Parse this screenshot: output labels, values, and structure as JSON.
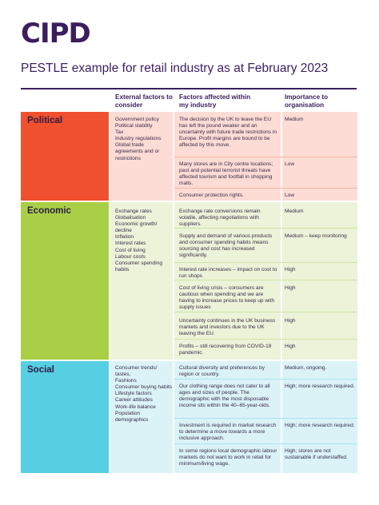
{
  "logo": "CIPD",
  "title": "PESTLE example for retail industry as at February 2023",
  "headers": {
    "col1": "External factors to consider",
    "col2": "Factors affected within my industry",
    "col3": "Importance to organisation"
  },
  "sections": [
    {
      "label": "Political",
      "external": "Government policy\nPolitical stability\nTax\nIndustry regulations\nGlobal trade agreements and or restrictions",
      "rows": [
        {
          "factor": "The decision by the UK to leave the EU has left the pound weaker and an uncertainty with future trade restrictions in Europe. Profit margins are bound to be affected by this move.",
          "importance": "Medium"
        },
        {
          "factor": "Many stores are in City centre locations; past and potential terrorist threats have affected tourism and footfall in shopping malls.",
          "importance": "Low"
        },
        {
          "factor": "Consumer protection rights.",
          "importance": "Low"
        }
      ]
    },
    {
      "label": "Economic",
      "external": "Exchange rates\nGlobalisation\nEconomic growth/ decline\nInflation\nInterest rates\nCost of living\nLabour costs\nConsumer spending habits",
      "rows": [
        {
          "factor": "Exchange rate conversions remain volatile, affecting negotiations with suppliers.",
          "importance": "Medium"
        },
        {
          "factor": "Supply and demand of various products and consumer spending habits means sourcing and cost has increased significantly.",
          "importance": "Medium – keep monitoring"
        },
        {
          "factor": "Interest rate increases – impact on cost to run shops",
          "importance": "High"
        },
        {
          "factor": "Cost of living crisis – consumers are cautious when spending and we are having to increase prices to keep up with supply issues",
          "importance": "High"
        },
        {
          "factor": "Uncertainty continues in the UK business markets and investors due to the UK leaving the EU.",
          "importance": "High"
        },
        {
          "factor": "Profits – still recovering from COVID-19 pandemic.",
          "importance": "High"
        }
      ]
    },
    {
      "label": "Social",
      "external": "Consumer trends/ tastes,\nFashions\nConsumer buying habits\nLifestyle factors\nCareer attitudes\nWork-life balance\nPopulation demographics",
      "rows": [
        {
          "factor": "Cultural diversity and preferences by region or country.",
          "importance": "Medium, ongoing."
        },
        {
          "factor": "Our clothing range does not cater to all ages and sizes of people. The demographic with the most disposable income sits within the 40–65-year-olds.",
          "importance": "High; more research required."
        },
        {
          "factor": "Investment is required in market research to determine a move towards a more inclusive approach.",
          "importance": "High; more research required."
        },
        {
          "factor": "In some regions local demographic labour markets do not want to work in retail for minimum/living wage.",
          "importance": "High; stores are not sustainable if understaffed."
        }
      ]
    }
  ]
}
